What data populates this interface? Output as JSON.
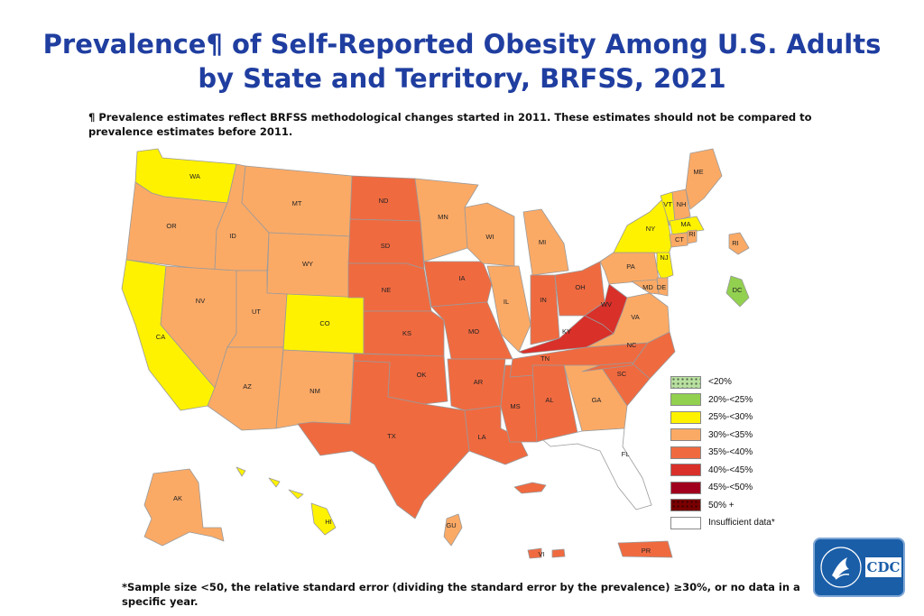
{
  "title": {
    "line1": "Prevalence¶ of Self-Reported Obesity Among U.S. Adults",
    "line2": "by State and Territory, BRFSS, 2021"
  },
  "footnote": "¶ Prevalence estimates reflect BRFSS methodological changes started in 2011. These estimates should not be compared to prevalence estimates before 2011.",
  "bottom_note": "*Sample size <50, the relative standard error (dividing the standard error by the prevalence) ≥30%, or no data in a specific year.",
  "colors": {
    "lt20": "#b8e0a0",
    "c20_25": "#92d050",
    "c25_30": "#fff200",
    "c30_35": "#fbaa66",
    "c35_40": "#f06a40",
    "c40_45": "#d9302a",
    "c45_50": "#a0001e",
    "c50p": "#7a0000",
    "insufficient": "#ffffff"
  },
  "legend": [
    {
      "label": "<20%",
      "color": "#b8e0a0",
      "pattern": "dots"
    },
    {
      "label": "20%-<25%",
      "color": "#92d050",
      "pattern": ""
    },
    {
      "label": "25%-<30%",
      "color": "#fff200",
      "pattern": ""
    },
    {
      "label": "30%-<35%",
      "color": "#fbaa66",
      "pattern": ""
    },
    {
      "label": "35%-<40%",
      "color": "#f06a40",
      "pattern": ""
    },
    {
      "label": "40%-<45%",
      "color": "#d9302a",
      "pattern": ""
    },
    {
      "label": "45%-<50%",
      "color": "#a0001e",
      "pattern": ""
    },
    {
      "label": "50% +",
      "color": "#7a0000",
      "pattern": "dots"
    },
    {
      "label": "Insufficient data*",
      "color": "#ffffff",
      "pattern": ""
    }
  ],
  "states": [
    {
      "abbr": "WA",
      "category": "25%-<30%"
    },
    {
      "abbr": "OR",
      "category": "30%-<35%"
    },
    {
      "abbr": "CA",
      "category": "25%-<30%"
    },
    {
      "abbr": "ID",
      "category": "30%-<35%"
    },
    {
      "abbr": "NV",
      "category": "30%-<35%"
    },
    {
      "abbr": "MT",
      "category": "30%-<35%"
    },
    {
      "abbr": "WY",
      "category": "30%-<35%"
    },
    {
      "abbr": "UT",
      "category": "30%-<35%"
    },
    {
      "abbr": "AZ",
      "category": "30%-<35%"
    },
    {
      "abbr": "CO",
      "category": "25%-<30%"
    },
    {
      "abbr": "NM",
      "category": "30%-<35%"
    },
    {
      "abbr": "ND",
      "category": "35%-<40%"
    },
    {
      "abbr": "SD",
      "category": "35%-<40%"
    },
    {
      "abbr": "NE",
      "category": "35%-<40%"
    },
    {
      "abbr": "KS",
      "category": "35%-<40%"
    },
    {
      "abbr": "OK",
      "category": "35%-<40%"
    },
    {
      "abbr": "TX",
      "category": "35%-<40%"
    },
    {
      "abbr": "MN",
      "category": "30%-<35%"
    },
    {
      "abbr": "IA",
      "category": "35%-<40%"
    },
    {
      "abbr": "MO",
      "category": "35%-<40%"
    },
    {
      "abbr": "AR",
      "category": "35%-<40%"
    },
    {
      "abbr": "LA",
      "category": "35%-<40%"
    },
    {
      "abbr": "WI",
      "category": "30%-<35%"
    },
    {
      "abbr": "IL",
      "category": "30%-<35%"
    },
    {
      "abbr": "MS",
      "category": "35%-<40%"
    },
    {
      "abbr": "MI",
      "category": "30%-<35%"
    },
    {
      "abbr": "IN",
      "category": "35%-<40%"
    },
    {
      "abbr": "KY",
      "category": "40%-<45%"
    },
    {
      "abbr": "TN",
      "category": "35%-<40%"
    },
    {
      "abbr": "AL",
      "category": "35%-<40%"
    },
    {
      "abbr": "OH",
      "category": "35%-<40%"
    },
    {
      "abbr": "WV",
      "category": "40%-<45%"
    },
    {
      "abbr": "GA",
      "category": "30%-<35%"
    },
    {
      "abbr": "FL",
      "category": "Insufficient data*"
    },
    {
      "abbr": "SC",
      "category": "35%-<40%"
    },
    {
      "abbr": "NC",
      "category": "35%-<40%"
    },
    {
      "abbr": "VA",
      "category": "30%-<35%"
    },
    {
      "abbr": "PA",
      "category": "30%-<35%"
    },
    {
      "abbr": "NY",
      "category": "25%-<30%"
    },
    {
      "abbr": "VT",
      "category": "25%-<30%"
    },
    {
      "abbr": "NH",
      "category": "30%-<35%"
    },
    {
      "abbr": "ME",
      "category": "30%-<35%"
    },
    {
      "abbr": "MA",
      "category": "25%-<30%"
    },
    {
      "abbr": "CT",
      "category": "30%-<35%"
    },
    {
      "abbr": "RI",
      "category": "30%-<35%"
    },
    {
      "abbr": "NJ",
      "category": "25%-<30%"
    },
    {
      "abbr": "DE",
      "category": "30%-<35%"
    },
    {
      "abbr": "MD",
      "category": "30%-<35%"
    },
    {
      "abbr": "DC",
      "category": "20%-<25%"
    },
    {
      "abbr": "AK",
      "category": "30%-<35%"
    },
    {
      "abbr": "HI",
      "category": "25%-<30%"
    },
    {
      "abbr": "GU",
      "category": "30%-<35%"
    },
    {
      "abbr": "PR",
      "category": "35%-<40%"
    },
    {
      "abbr": "VI",
      "category": "35%-<40%"
    }
  ],
  "logo": {
    "text": "CDC"
  }
}
